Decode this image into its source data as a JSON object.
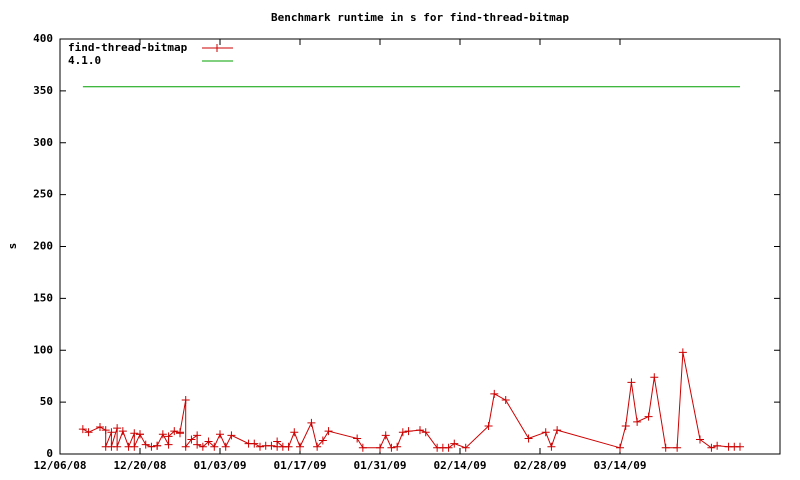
{
  "chart_data": {
    "type": "line",
    "title": "Benchmark runtime in s for find-thread-bitmap",
    "y_label": "s",
    "xlim": [
      "2008-12-06",
      "2009-04-11"
    ],
    "xticks": [
      {
        "value": "2008-12-06",
        "label": "12/06/08"
      },
      {
        "value": "2008-12-20",
        "label": "12/20/08"
      },
      {
        "value": "2009-01-03",
        "label": "01/03/09"
      },
      {
        "value": "2009-01-17",
        "label": "01/17/09"
      },
      {
        "value": "2009-01-31",
        "label": "01/31/09"
      },
      {
        "value": "2009-02-14",
        "label": "02/14/09"
      },
      {
        "value": "2009-02-28",
        "label": "02/28/09"
      },
      {
        "value": "2009-03-14",
        "label": "03/14/09"
      }
    ],
    "ylim": [
      0,
      400
    ],
    "yticks": [
      0,
      50,
      100,
      150,
      200,
      250,
      300,
      350,
      400
    ],
    "legend": "top-left",
    "series": [
      {
        "name": "find-thread-bitmap",
        "color": "#cc0000",
        "marker": "plus",
        "x": [
          "2008-12-10",
          "2008-12-11",
          "2008-12-13",
          "2008-12-14",
          "2008-12-14",
          "2008-12-15",
          "2008-12-15",
          "2008-12-16",
          "2008-12-16",
          "2008-12-17",
          "2008-12-18",
          "2008-12-19",
          "2008-12-19",
          "2008-12-20",
          "2008-12-20",
          "2008-12-21",
          "2008-12-22",
          "2008-12-23",
          "2008-12-23",
          "2008-12-24",
          "2008-12-25",
          "2008-12-25",
          "2008-12-26",
          "2008-12-27",
          "2008-12-27",
          "2008-12-28",
          "2008-12-28",
          "2008-12-29",
          "2008-12-30",
          "2008-12-30",
          "2008-12-31",
          "2009-01-01",
          "2009-01-02",
          "2009-01-03",
          "2009-01-04",
          "2009-01-05",
          "2009-01-08",
          "2009-01-09",
          "2009-01-10",
          "2009-01-11",
          "2009-01-12",
          "2009-01-13",
          "2009-01-13",
          "2009-01-14",
          "2009-01-15",
          "2009-01-16",
          "2009-01-17",
          "2009-01-19",
          "2009-01-20",
          "2009-01-21",
          "2009-01-22",
          "2009-01-27",
          "2009-01-28",
          "2009-01-31",
          "2009-02-01",
          "2009-02-02",
          "2009-02-03",
          "2009-02-04",
          "2009-02-05",
          "2009-02-07",
          "2009-02-08",
          "2009-02-10",
          "2009-02-11",
          "2009-02-12",
          "2009-02-13",
          "2009-02-15",
          "2009-02-19",
          "2009-02-20",
          "2009-02-22",
          "2009-02-26",
          "2009-03-01",
          "2009-03-02",
          "2009-03-03",
          "2009-03-14",
          "2009-03-15",
          "2009-03-16",
          "2009-03-17",
          "2009-03-19",
          "2009-03-20",
          "2009-03-22",
          "2009-03-24",
          "2009-03-25",
          "2009-03-28",
          "2009-03-30",
          "2009-03-31",
          "2009-04-02",
          "2009-04-03",
          "2009-04-04"
        ],
        "values": [
          24,
          21,
          26,
          23,
          7,
          21,
          7,
          25,
          7,
          22,
          7,
          20,
          7,
          19,
          19,
          9,
          7,
          8,
          8,
          19,
          9,
          17,
          22,
          20,
          21,
          52,
          7,
          14,
          18,
          9,
          7,
          12,
          7,
          19,
          7,
          18,
          10,
          10,
          7,
          8,
          8,
          7,
          12,
          7,
          7,
          21,
          7,
          30,
          7,
          13,
          22,
          15,
          6,
          6,
          18,
          6,
          7,
          21,
          22,
          23,
          21,
          6,
          6,
          6,
          10,
          6,
          27,
          58,
          52,
          15,
          21,
          7,
          23,
          6,
          27,
          69,
          31,
          36,
          74,
          6,
          6,
          98,
          14,
          6,
          8,
          7,
          7,
          7
        ]
      },
      {
        "name": "4.1.0",
        "color": "#00a000",
        "marker": "none",
        "x": [
          "2008-12-10",
          "2009-04-04"
        ],
        "values": [
          354,
          354
        ]
      }
    ]
  }
}
